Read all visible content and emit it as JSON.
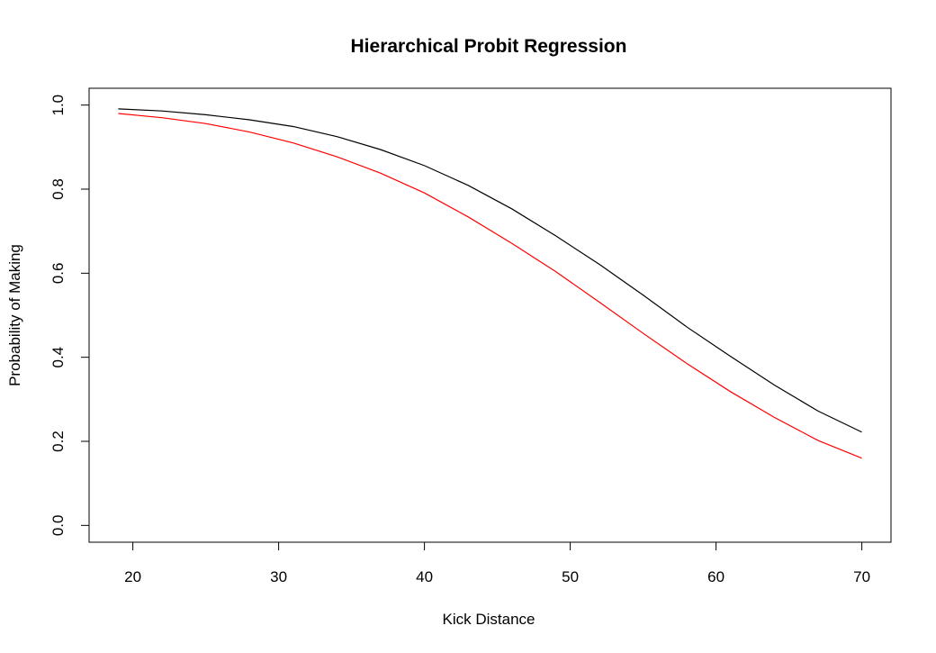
{
  "chart_data": {
    "type": "line",
    "title": "Hierarchical Probit Regression",
    "xlabel": "Kick Distance",
    "ylabel": "Probability of Making",
    "xlim": [
      17,
      72
    ],
    "ylim": [
      -0.04,
      1.04
    ],
    "xticks": [
      "20",
      "30",
      "40",
      "50",
      "60",
      "70"
    ],
    "yticks": [
      "0.0",
      "0.2",
      "0.4",
      "0.6",
      "0.8",
      "1.0"
    ],
    "grid": false,
    "legend": "none",
    "series": [
      {
        "color": "#000000",
        "x": [
          19,
          22,
          25,
          28,
          31,
          34,
          37,
          40,
          43,
          46,
          49,
          52,
          55,
          58,
          61,
          64,
          67,
          70
        ],
        "y": [
          0.991,
          0.986,
          0.977,
          0.965,
          0.949,
          0.925,
          0.894,
          0.856,
          0.809,
          0.753,
          0.689,
          0.621,
          0.548,
          0.472,
          0.402,
          0.334,
          0.272,
          0.222
        ]
      },
      {
        "color": "#ff0000",
        "x": [
          19,
          22,
          25,
          28,
          31,
          34,
          37,
          40,
          43,
          46,
          49,
          52,
          55,
          58,
          61,
          64,
          67,
          70
        ],
        "y": [
          0.98,
          0.97,
          0.956,
          0.936,
          0.91,
          0.877,
          0.838,
          0.791,
          0.734,
          0.671,
          0.604,
          0.531,
          0.457,
          0.385,
          0.318,
          0.257,
          0.202,
          0.16
        ]
      }
    ]
  }
}
